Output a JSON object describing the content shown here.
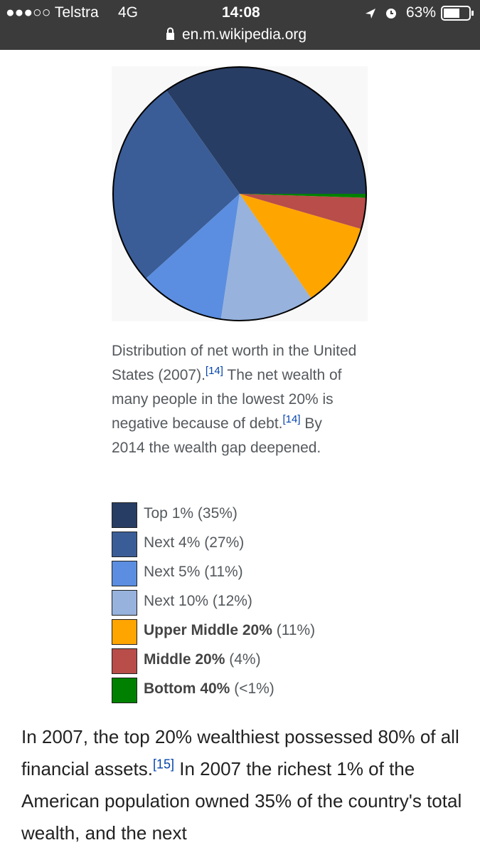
{
  "status_bar": {
    "carrier": "●●●○○ Telstra",
    "network": "4G",
    "time": "14:08",
    "battery": "63%"
  },
  "url": "en.m.wikipedia.org",
  "chart_data": {
    "type": "pie",
    "categories": [
      "Top 1%",
      "Next 4%",
      "Next 5%",
      "Next 10%",
      "Upper Middle 20%",
      "Middle 20%",
      "Bottom 40%"
    ],
    "values": [
      35,
      27,
      11,
      12,
      11,
      4,
      0.5
    ],
    "value_labels": [
      "(35%)",
      "(27%)",
      "(11%)",
      "(12%)",
      "(11%)",
      "(4%)",
      "(<1%)"
    ],
    "colors": [
      "#283d63",
      "#3a5d97",
      "#5b8ee0",
      "#97b2dc",
      "#ffa500",
      "#b84d49",
      "#008000"
    ],
    "bold": [
      false,
      false,
      false,
      false,
      true,
      true,
      true
    ]
  },
  "caption": [
    {
      "text": "Distribution of net worth in the United States (2007)."
    },
    {
      "sup": "[14]"
    },
    {
      "text": " The net wealth of many people in the lowest 20% is negative because of debt."
    },
    {
      "sup": "[14]"
    },
    {
      "text": " By 2014 the wealth gap deepened."
    }
  ],
  "paragraph": [
    {
      "text": "In 2007, the top 20% wealthiest possessed 80% of all financial assets."
    },
    {
      "sup": "[15]"
    },
    {
      "text": " In 2007 the richest 1% of the American population owned 35% of the country's total wealth, and the next"
    }
  ]
}
